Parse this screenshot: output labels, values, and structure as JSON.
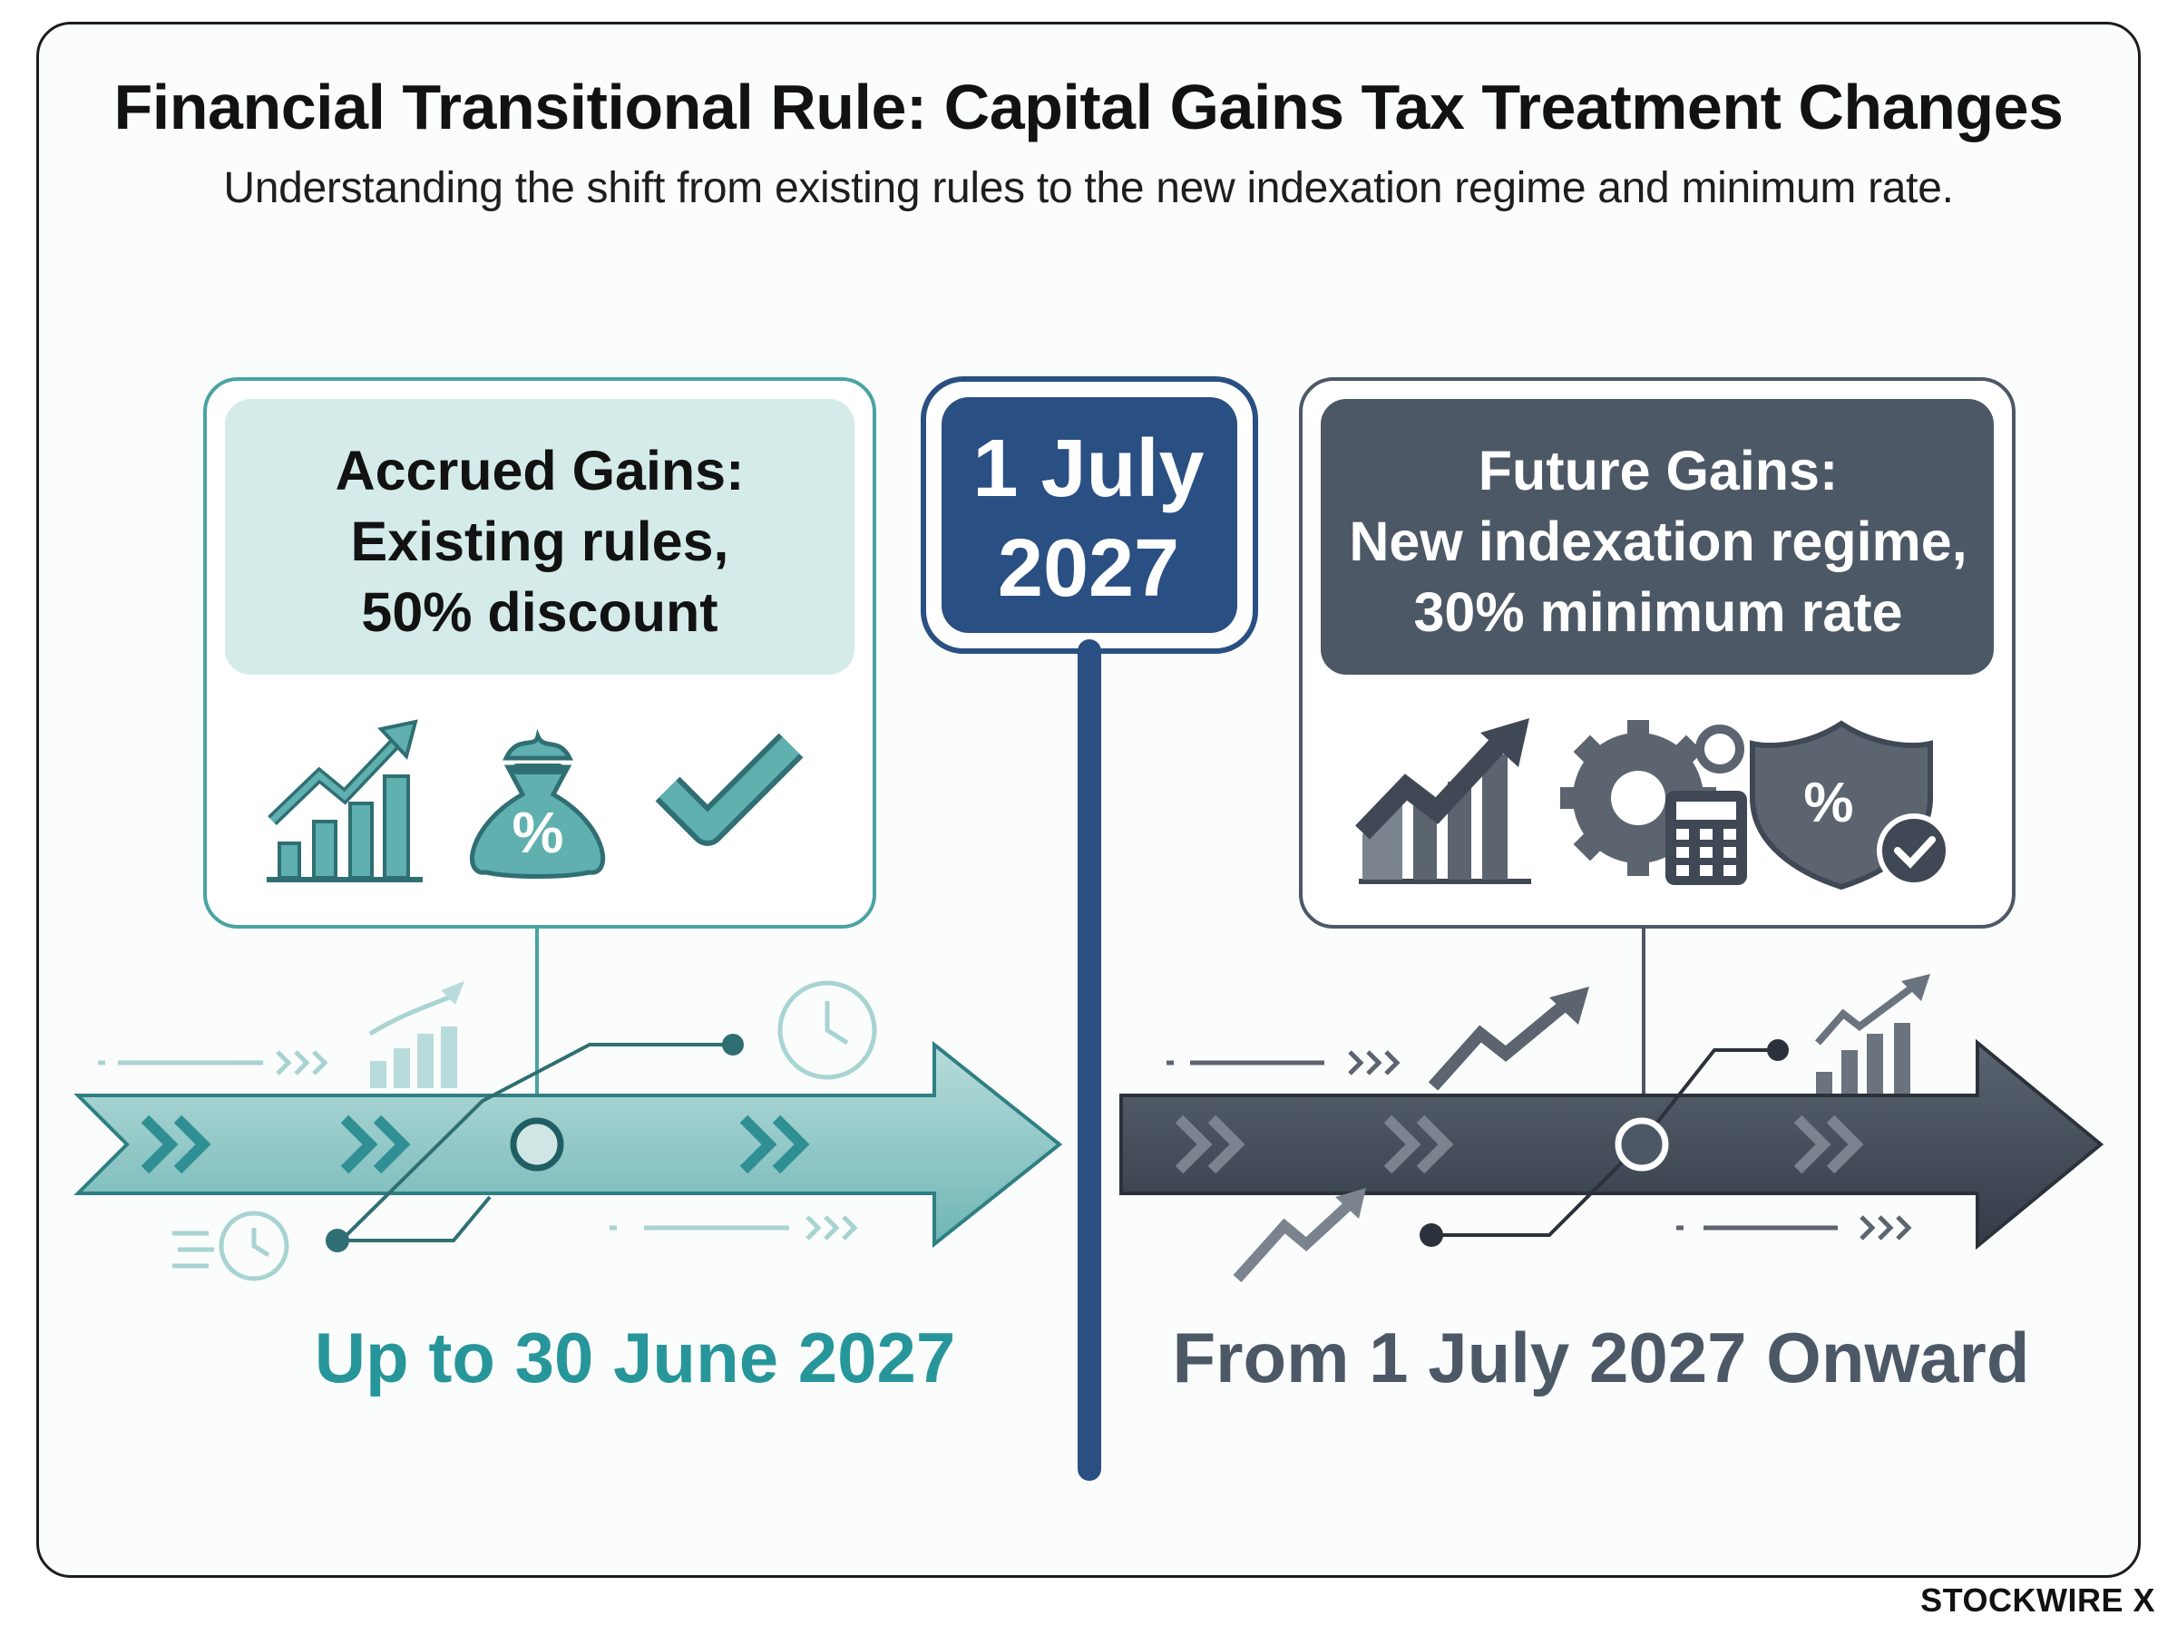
{
  "header": {
    "title": "Financial Transitional Rule: Capital Gains Tax Treatment Changes",
    "subtitle": "Understanding the shift from existing rules to the new indexation regime and minimum rate."
  },
  "divider": {
    "date_line1": "1 July",
    "date_line2": "2027"
  },
  "left_panel": {
    "line1": "Accrued Gains:",
    "line2": "Existing rules,",
    "line3": "50% discount",
    "icons": [
      "growth-chart-icon",
      "money-bag-percent-icon",
      "checkmark-icon"
    ],
    "phase_label": "Up to 30 June 2027",
    "accent_color": "#3a9b9c"
  },
  "right_panel": {
    "line1": "Future Gains:",
    "line2": "New indexation regime,",
    "line3": "30% minimum rate",
    "icons": [
      "growth-chart-icon",
      "gear-calculator-icon",
      "shield-percent-icon"
    ],
    "phase_label": "From 1 July 2027 Onward",
    "accent_color": "#4d5866"
  },
  "icon_glyphs": {
    "percent": "%"
  },
  "brand": {
    "name": "STOCKWIRE X"
  },
  "colors": {
    "teal": "#3a9b9c",
    "teal_light": "#d4ebea",
    "slate": "#4d5866",
    "navy": "#2a4f82"
  }
}
